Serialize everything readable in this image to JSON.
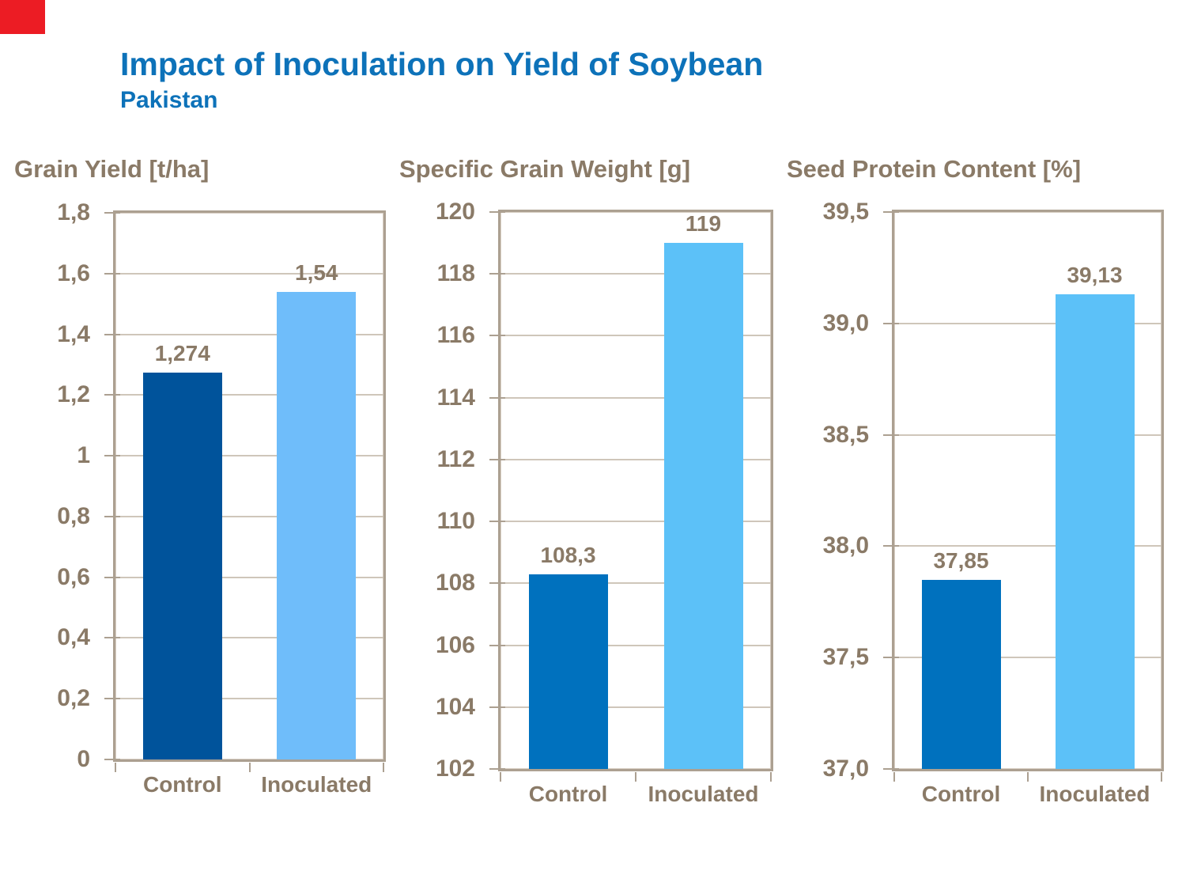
{
  "slide": {
    "title": "Impact of Inoculation on Yield of Soybean",
    "subtitle": "Pakistan"
  },
  "palette": {
    "title_blue": "#0D72B9",
    "text_brown": "#8A7A67",
    "plot_frame": "#ACA091",
    "gridline": "#CFC6BA",
    "accent_red": "#EC1C24"
  },
  "chart_data": [
    {
      "type": "bar",
      "title": "Grain Yield [t/ha]",
      "categories": [
        "Control",
        "Inoculated"
      ],
      "values": [
        1.274,
        1.54
      ],
      "value_labels": [
        "1,274",
        "1,54"
      ],
      "ylim": [
        0,
        1.8
      ],
      "ytick_step": 0.2,
      "ytick_labels": [
        "1,8",
        "1,6",
        "1,4",
        "1,2",
        "1",
        "0,8",
        "0,6",
        "0,4",
        "0,2",
        "0"
      ],
      "bar_colors": [
        "#00539B",
        "#6FBDFA"
      ],
      "grid": true,
      "legend": "none",
      "xlabel": "",
      "ylabel": ""
    },
    {
      "type": "bar",
      "title": "Specific Grain Weight [g]",
      "categories": [
        "Control",
        "Inoculated"
      ],
      "values": [
        108.3,
        119
      ],
      "value_labels": [
        "108,3",
        "119"
      ],
      "ylim": [
        102,
        120
      ],
      "ytick_step": 2,
      "ytick_labels": [
        "120",
        "118",
        "116",
        "114",
        "112",
        "110",
        "108",
        "106",
        "104",
        "102"
      ],
      "bar_colors": [
        "#0071BE",
        "#5CC1F8"
      ],
      "grid": true,
      "legend": "none",
      "xlabel": "",
      "ylabel": ""
    },
    {
      "type": "bar",
      "title": "Seed Protein Content [%]",
      "categories": [
        "Control",
        "Inoculated"
      ],
      "values": [
        37.85,
        39.13
      ],
      "value_labels": [
        "37,85",
        "39,13"
      ],
      "ylim": [
        37.0,
        39.5
      ],
      "ytick_step": 0.5,
      "ytick_labels": [
        "39,5",
        "39,0",
        "38,5",
        "38,0",
        "37,5",
        "37,0"
      ],
      "bar_colors": [
        "#0071BE",
        "#5CC1F8"
      ],
      "grid": true,
      "legend": "none",
      "xlabel": "",
      "ylabel": ""
    }
  ]
}
